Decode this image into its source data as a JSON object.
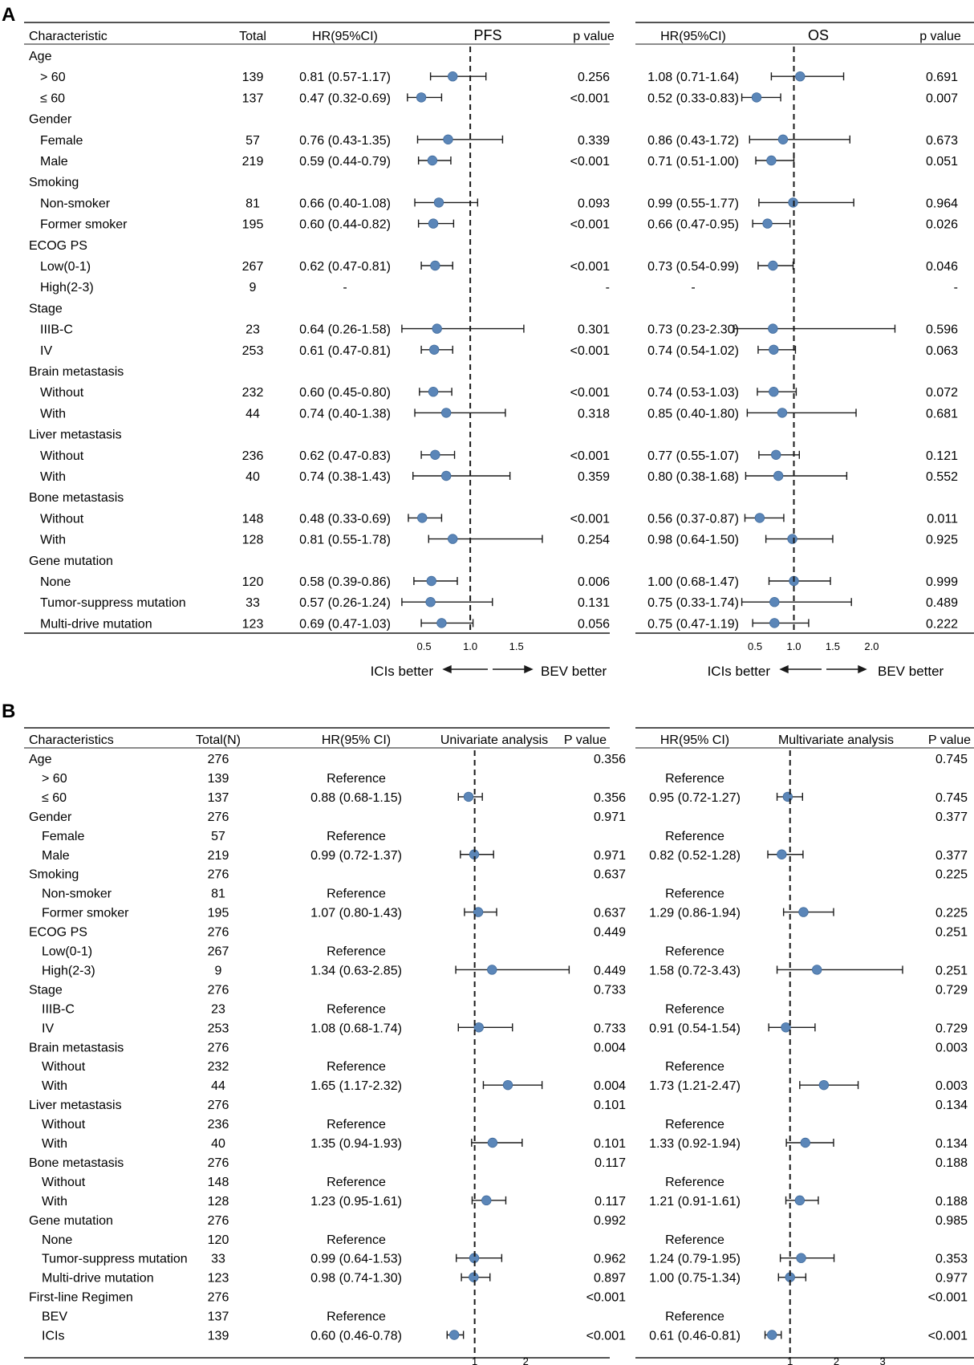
{
  "panels": {
    "a": {
      "letter": "A",
      "headers": {
        "characteristic": "Characteristic",
        "total": "Total",
        "hr_pfs": "HR(95%CI)",
        "pfs": "PFS",
        "p_pfs": "p value",
        "hr_os": "HR(95%CI)",
        "os": "OS",
        "p_os": "p value"
      },
      "footer": {
        "left": "ICIs better",
        "right": "BEV better",
        "pfs_ticks": [
          "0.5",
          "1.0",
          "1.5"
        ],
        "os_ticks": [
          "0.5",
          "1.0",
          "1.5",
          "2.0"
        ]
      }
    },
    "b": {
      "letter": "B",
      "headers": {
        "characteristic": "Characteristics",
        "total": "Total(N)",
        "hr_uni": "HR(95% CI)",
        "uni": "Univariate analysis",
        "p_uni": "P value",
        "hr_multi": "HR(95% CI)",
        "multi": "Multivariate analysis",
        "p_multi": "P value"
      },
      "uni_ticks": [
        "1",
        "2"
      ],
      "multi_ticks": [
        "1",
        "2",
        "3"
      ]
    }
  },
  "chart_data": [
    {
      "type": "forest",
      "title": "A",
      "reference_line": 1.0,
      "panels": [
        {
          "name": "PFS",
          "xlim": [
            0.2,
            1.85
          ],
          "ticks": [
            0.5,
            1.0,
            1.5
          ]
        },
        {
          "name": "OS",
          "xlim": [
            0.2,
            2.45
          ],
          "ticks": [
            0.5,
            1.0,
            1.5,
            2.0
          ]
        }
      ],
      "rows": [
        {
          "label": "Age",
          "header": true
        },
        {
          "label": "> 60",
          "total": "139",
          "pfs_text": "0.81 (0.57-1.17)",
          "pfs": [
            0.81,
            0.57,
            1.17
          ],
          "pfs_p": "0.256",
          "os_text": "1.08 (0.71-1.64)",
          "os": [
            1.08,
            0.71,
            1.64
          ],
          "os_p": "0.691"
        },
        {
          "label": "≤ 60",
          "total": "137",
          "pfs_text": "0.47 (0.32-0.69)",
          "pfs": [
            0.47,
            0.32,
            0.69
          ],
          "pfs_p": "<0.001",
          "os_text": "0.52 (0.33-0.83)",
          "os": [
            0.52,
            0.33,
            0.83
          ],
          "os_p": "0.007"
        },
        {
          "label": "Gender",
          "header": true
        },
        {
          "label": "Female",
          "total": "57",
          "pfs_text": "0.76 (0.43-1.35)",
          "pfs": [
            0.76,
            0.43,
            1.35
          ],
          "pfs_p": "0.339",
          "os_text": "0.86 (0.43-1.72)",
          "os": [
            0.86,
            0.43,
            1.72
          ],
          "os_p": "0.673"
        },
        {
          "label": "Male",
          "total": "219",
          "pfs_text": "0.59 (0.44-0.79)",
          "pfs": [
            0.59,
            0.44,
            0.79
          ],
          "pfs_p": "<0.001",
          "os_text": "0.71 (0.51-1.00)",
          "os": [
            0.71,
            0.51,
            1.0
          ],
          "os_p": "0.051"
        },
        {
          "label": "Smoking",
          "header": true
        },
        {
          "label": "Non-smoker",
          "total": "81",
          "pfs_text": "0.66 (0.40-1.08)",
          "pfs": [
            0.66,
            0.4,
            1.08
          ],
          "pfs_p": "0.093",
          "os_text": "0.99 (0.55-1.77)",
          "os": [
            0.99,
            0.55,
            1.77
          ],
          "os_p": "0.964"
        },
        {
          "label": "Former smoker",
          "total": "195",
          "pfs_text": "0.60 (0.44-0.82)",
          "pfs": [
            0.6,
            0.44,
            0.82
          ],
          "pfs_p": "<0.001",
          "os_text": "0.66 (0.47-0.95)",
          "os": [
            0.66,
            0.47,
            0.95
          ],
          "os_p": "0.026"
        },
        {
          "label": "ECOG PS",
          "header": true
        },
        {
          "label": "Low(0-1)",
          "total": "267",
          "pfs_text": "0.62 (0.47-0.81)",
          "pfs": [
            0.62,
            0.47,
            0.81
          ],
          "pfs_p": "<0.001",
          "os_text": "0.73 (0.54-0.99)",
          "os": [
            0.73,
            0.54,
            0.99
          ],
          "os_p": "0.046"
        },
        {
          "label": "High(2-3)",
          "total": "9",
          "pfs_text": "-",
          "pfs": null,
          "pfs_p": "-",
          "os_text": "-",
          "os": null,
          "os_p": "-"
        },
        {
          "label": "Stage",
          "header": true
        },
        {
          "label": "IIIB-C",
          "total": "23",
          "pfs_text": "0.64 (0.26-1.58)",
          "pfs": [
            0.64,
            0.26,
            1.58
          ],
          "pfs_p": "0.301",
          "os_text": "0.73 (0.23-2.30)",
          "os": [
            0.73,
            0.23,
            2.3
          ],
          "os_p": "0.596"
        },
        {
          "label": "IV",
          "total": "253",
          "pfs_text": "0.61 (0.47-0.81)",
          "pfs": [
            0.61,
            0.47,
            0.81
          ],
          "pfs_p": "<0.001",
          "os_text": "0.74 (0.54-1.02)",
          "os": [
            0.74,
            0.54,
            1.02
          ],
          "os_p": "0.063"
        },
        {
          "label": "Brain metastasis",
          "header": true
        },
        {
          "label": "Without",
          "total": "232",
          "pfs_text": "0.60 (0.45-0.80)",
          "pfs": [
            0.6,
            0.45,
            0.8
          ],
          "pfs_p": "<0.001",
          "os_text": "0.74 (0.53-1.03)",
          "os": [
            0.74,
            0.53,
            1.03
          ],
          "os_p": "0.072"
        },
        {
          "label": "With",
          "total": "44",
          "pfs_text": "0.74 (0.40-1.38)",
          "pfs": [
            0.74,
            0.4,
            1.38
          ],
          "pfs_p": "0.318",
          "os_text": "0.85 (0.40-1.80)",
          "os": [
            0.85,
            0.4,
            1.8
          ],
          "os_p": "0.681"
        },
        {
          "label": "Liver metastasis",
          "header": true
        },
        {
          "label": "Without",
          "total": "236",
          "pfs_text": "0.62 (0.47-0.83)",
          "pfs": [
            0.62,
            0.47,
            0.83
          ],
          "pfs_p": "<0.001",
          "os_text": "0.77 (0.55-1.07)",
          "os": [
            0.77,
            0.55,
            1.07
          ],
          "os_p": "0.121"
        },
        {
          "label": "With",
          "total": "40",
          "pfs_text": "0.74 (0.38-1.43)",
          "pfs": [
            0.74,
            0.38,
            1.43
          ],
          "pfs_p": "0.359",
          "os_text": "0.80 (0.38-1.68)",
          "os": [
            0.8,
            0.38,
            1.68
          ],
          "os_p": "0.552"
        },
        {
          "label": "Bone metastasis",
          "header": true
        },
        {
          "label": "Without",
          "total": "148",
          "pfs_text": "0.48 (0.33-0.69)",
          "pfs": [
            0.48,
            0.33,
            0.69
          ],
          "pfs_p": "<0.001",
          "os_text": "0.56 (0.37-0.87)",
          "os": [
            0.56,
            0.37,
            0.87
          ],
          "os_p": "0.011"
        },
        {
          "label": "With",
          "total": "128",
          "pfs_text": "0.81 (0.55-1.78)",
          "pfs": [
            0.81,
            0.55,
            1.78
          ],
          "pfs_p": "0.254",
          "os_text": "0.98 (0.64-1.50)",
          "os": [
            0.98,
            0.64,
            1.5
          ],
          "os_p": "0.925"
        },
        {
          "label": "Gene mutation",
          "header": true
        },
        {
          "label": "None",
          "total": "120",
          "pfs_text": "0.58 (0.39-0.86)",
          "pfs": [
            0.58,
            0.39,
            0.86
          ],
          "pfs_p": "0.006",
          "os_text": "1.00 (0.68-1.47)",
          "os": [
            1.0,
            0.68,
            1.47
          ],
          "os_p": "0.999"
        },
        {
          "label": "Tumor-suppress mutation",
          "total": "33",
          "pfs_text": "0.57 (0.26-1.24)",
          "pfs": [
            0.57,
            0.26,
            1.24
          ],
          "pfs_p": "0.131",
          "os_text": "0.75 (0.33-1.74)",
          "os": [
            0.75,
            0.33,
            1.74
          ],
          "os_p": "0.489"
        },
        {
          "label": "Multi-drive mutation",
          "total": "123",
          "pfs_text": "0.69 (0.47-1.03)",
          "pfs": [
            0.69,
            0.47,
            1.03
          ],
          "pfs_p": "0.056",
          "os_text": "0.75 (0.47-1.19)",
          "os": [
            0.75,
            0.47,
            1.19
          ],
          "os_p": "0.222"
        }
      ]
    },
    {
      "type": "forest",
      "title": "B",
      "reference_line": 1.0,
      "panels": [
        {
          "name": "Univariate analysis",
          "xlim": [
            0.0,
            3.3
          ],
          "ticks": [
            1,
            2
          ]
        },
        {
          "name": "Multivariate analysis",
          "xlim": [
            0.0,
            3.95
          ],
          "ticks": [
            1,
            2,
            3
          ]
        }
      ],
      "rows": [
        {
          "label": "Age",
          "header": true,
          "total": "276",
          "uni_p": "0.356",
          "multi_p": "0.745"
        },
        {
          "label": "> 60",
          "total": "139",
          "uni_text": "Reference",
          "multi_text": "Reference"
        },
        {
          "label": "≤ 60",
          "total": "137",
          "uni_text": "0.88 (0.68-1.15)",
          "uni": [
            0.88,
            0.68,
            1.15
          ],
          "uni_p": "0.356",
          "multi_text": "0.95 (0.72-1.27)",
          "multi": [
            0.95,
            0.72,
            1.27
          ],
          "multi_p": "0.745"
        },
        {
          "label": "Gender",
          "header": true,
          "total": "276",
          "uni_p": "0.971",
          "multi_p": "0.377"
        },
        {
          "label": "Female",
          "total": "57",
          "uni_text": "Reference",
          "multi_text": "Reference"
        },
        {
          "label": "Male",
          "total": "219",
          "uni_text": "0.99 (0.72-1.37)",
          "uni": [
            0.99,
            0.72,
            1.37
          ],
          "uni_p": "0.971",
          "multi_text": "0.82 (0.52-1.28)",
          "multi": [
            0.82,
            0.52,
            1.28
          ],
          "multi_p": "0.377"
        },
        {
          "label": "Smoking",
          "header": true,
          "total": "276",
          "uni_p": "0.637",
          "multi_p": "0.225"
        },
        {
          "label": "Non-smoker",
          "total": "81",
          "uni_text": "Reference",
          "multi_text": "Reference"
        },
        {
          "label": "Former smoker",
          "total": "195",
          "uni_text": "1.07 (0.80-1.43)",
          "uni": [
            1.07,
            0.8,
            1.43
          ],
          "uni_p": "0.637",
          "multi_text": "1.29 (0.86-1.94)",
          "multi": [
            1.29,
            0.86,
            1.94
          ],
          "multi_p": "0.225"
        },
        {
          "label": "ECOG PS",
          "header": true,
          "total": "276",
          "uni_p": "0.449",
          "multi_p": "0.251"
        },
        {
          "label": "Low(0-1)",
          "total": "267",
          "uni_text": "Reference",
          "multi_text": "Reference"
        },
        {
          "label": "High(2-3)",
          "total": "9",
          "uni_text": "1.34 (0.63-2.85)",
          "uni": [
            1.34,
            0.63,
            2.85
          ],
          "uni_p": "0.449",
          "multi_text": "1.58 (0.72-3.43)",
          "multi": [
            1.58,
            0.72,
            3.43
          ],
          "multi_p": "0.251"
        },
        {
          "label": "Stage",
          "header": true,
          "total": "276",
          "uni_p": "0.733",
          "multi_p": "0.729"
        },
        {
          "label": "IIIB-C",
          "total": "23",
          "uni_text": "Reference",
          "multi_text": "Reference"
        },
        {
          "label": "IV",
          "total": "253",
          "uni_text": "1.08 (0.68-1.74)",
          "uni": [
            1.08,
            0.68,
            1.74
          ],
          "uni_p": "0.733",
          "multi_text": "0.91 (0.54-1.54)",
          "multi": [
            0.91,
            0.54,
            1.54
          ],
          "multi_p": "0.729"
        },
        {
          "label": "Brain metastasis",
          "header": true,
          "total": "276",
          "uni_p": "0.004",
          "multi_p": "0.003"
        },
        {
          "label": "Without",
          "total": "232",
          "uni_text": "Reference",
          "multi_text": "Reference"
        },
        {
          "label": "With",
          "total": "44",
          "uni_text": "1.65 (1.17-2.32)",
          "uni": [
            1.65,
            1.17,
            2.32
          ],
          "uni_p": "0.004",
          "multi_text": "1.73 (1.21-2.47)",
          "multi": [
            1.73,
            1.21,
            2.47
          ],
          "multi_p": "0.003"
        },
        {
          "label": "Liver metastasis",
          "header": true,
          "total": "276",
          "uni_p": "0.101",
          "multi_p": "0.134"
        },
        {
          "label": "Without",
          "total": "236",
          "uni_text": "Reference",
          "multi_text": "Reference"
        },
        {
          "label": "With",
          "total": "40",
          "uni_text": "1.35 (0.94-1.93)",
          "uni": [
            1.35,
            0.94,
            1.93
          ],
          "uni_p": "0.101",
          "multi_text": "1.33 (0.92-1.94)",
          "multi": [
            1.33,
            0.92,
            1.94
          ],
          "multi_p": "0.134"
        },
        {
          "label": "Bone metastasis",
          "header": true,
          "total": "276",
          "uni_p": "0.117",
          "multi_p": "0.188"
        },
        {
          "label": "Without",
          "total": "148",
          "uni_text": "Reference",
          "multi_text": "Reference"
        },
        {
          "label": "With",
          "total": "128",
          "uni_text": "1.23 (0.95-1.61)",
          "uni": [
            1.23,
            0.95,
            1.61
          ],
          "uni_p": "0.117",
          "multi_text": "1.21 (0.91-1.61)",
          "multi": [
            1.21,
            0.91,
            1.61
          ],
          "multi_p": "0.188"
        },
        {
          "label": "Gene mutation",
          "header": true,
          "total": "276",
          "uni_p": "0.992",
          "multi_p": "0.985"
        },
        {
          "label": "None",
          "total": "120",
          "uni_text": "Reference",
          "multi_text": "Reference"
        },
        {
          "label": "Tumor-suppress mutation",
          "total": "33",
          "uni_text": "0.99 (0.64-1.53)",
          "uni": [
            0.99,
            0.64,
            1.53
          ],
          "uni_p": "0.962",
          "multi_text": "1.24 (0.79-1.95)",
          "multi": [
            1.24,
            0.79,
            1.95
          ],
          "multi_p": "0.353"
        },
        {
          "label": "Multi-drive mutation",
          "total": "123",
          "uni_text": "0.98 (0.74-1.30)",
          "uni": [
            0.98,
            0.74,
            1.3
          ],
          "uni_p": "0.897",
          "multi_text": "1.00 (0.75-1.34)",
          "multi": [
            1.0,
            0.75,
            1.34
          ],
          "multi_p": "0.977"
        },
        {
          "label": "First-line Regimen",
          "header": true,
          "total": "276",
          "uni_p": "<0.001",
          "multi_p": "<0.001"
        },
        {
          "label": "BEV",
          "total": "137",
          "uni_text": "Reference",
          "multi_text": "Reference"
        },
        {
          "label": "ICIs",
          "total": "139",
          "uni_text": "0.60 (0.46-0.78)",
          "uni": [
            0.6,
            0.46,
            0.78
          ],
          "uni_p": "<0.001",
          "multi_text": "0.61 (0.46-0.81)",
          "multi": [
            0.61,
            0.46,
            0.81
          ],
          "multi_p": "<0.001"
        }
      ]
    }
  ],
  "colors": {
    "marker": "#5b86b8",
    "line": "#1a1a1a"
  }
}
